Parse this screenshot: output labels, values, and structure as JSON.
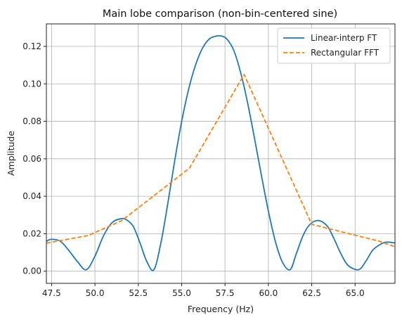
{
  "chart_data": {
    "type": "line",
    "title": "Main lobe comparison (non-bin-centered sine)",
    "xlabel": "Frequency (Hz)",
    "ylabel": "Amplitude",
    "xlim": [
      47.2,
      67.3
    ],
    "ylim": [
      -0.0065,
      0.132
    ],
    "grid": true,
    "legend_position": "top-right",
    "x_ticks": [
      "47.5",
      "50.0",
      "52.5",
      "55.0",
      "57.5",
      "60.0",
      "62.5",
      "65.0"
    ],
    "y_ticks": [
      "0.00",
      "0.02",
      "0.04",
      "0.06",
      "0.08",
      "0.10",
      "0.12"
    ],
    "series": [
      {
        "name": "Linear-interp FT",
        "color": "#1f77b4",
        "style": "solid",
        "x": [
          47.2,
          47.5,
          48.0,
          48.5,
          49.0,
          49.5,
          50.0,
          50.5,
          51.0,
          51.5,
          51.8,
          52.2,
          52.6,
          53.0,
          53.4,
          53.8,
          54.2,
          54.6,
          55.0,
          55.4,
          55.8,
          56.2,
          56.6,
          57.0,
          57.3,
          57.6,
          58.0,
          58.4,
          58.8,
          59.2,
          59.6,
          60.0,
          60.4,
          60.8,
          61.25,
          61.6,
          62.0,
          62.4,
          62.9,
          63.4,
          63.8,
          64.2,
          64.6,
          65.2,
          65.6,
          66.0,
          66.4,
          66.8,
          67.3
        ],
        "y": [
          0.016,
          0.017,
          0.016,
          0.011,
          0.005,
          0.0008,
          0.008,
          0.019,
          0.026,
          0.028,
          0.0275,
          0.024,
          0.015,
          0.005,
          0.0008,
          0.015,
          0.036,
          0.059,
          0.08,
          0.097,
          0.11,
          0.119,
          0.124,
          0.1255,
          0.1255,
          0.124,
          0.118,
          0.106,
          0.09,
          0.071,
          0.051,
          0.032,
          0.016,
          0.005,
          0.0008,
          0.009,
          0.019,
          0.025,
          0.027,
          0.024,
          0.017,
          0.009,
          0.003,
          0.0008,
          0.005,
          0.011,
          0.014,
          0.0155,
          0.015
        ]
      },
      {
        "name": "Rectangular FFT",
        "color": "#ff7f0e",
        "style": "dashed",
        "x": [
          47.2,
          49.6,
          51.55,
          55.45,
          58.6,
          62.5,
          66.4,
          67.3
        ],
        "y": [
          0.015,
          0.019,
          0.027,
          0.055,
          0.105,
          0.025,
          0.016,
          0.013
        ]
      }
    ]
  }
}
